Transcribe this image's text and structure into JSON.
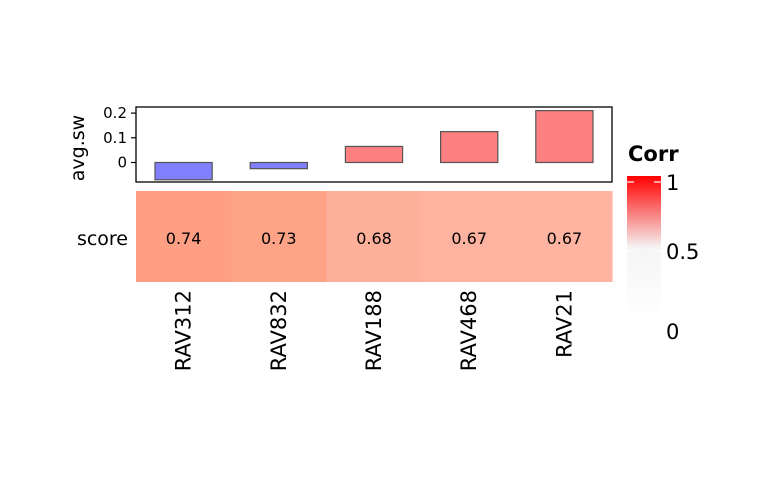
{
  "chart_data": [
    {
      "type": "bar",
      "ylabel": "avg.sw",
      "categories": [
        "RAV312",
        "RAV832",
        "RAV188",
        "RAV468",
        "RAV21"
      ],
      "values": [
        -0.07,
        -0.025,
        0.065,
        0.125,
        0.21
      ],
      "yticks": [
        0,
        0.1,
        0.2
      ],
      "ytick_labels": [
        "0",
        "0.1",
        "0.2"
      ],
      "ylim": [
        -0.08,
        0.23
      ],
      "colors": {
        "negative": "#8080ff",
        "positive": "#ff8080",
        "border": "#555555"
      }
    },
    {
      "type": "heatmap",
      "row_label": "score",
      "categories": [
        "RAV312",
        "RAV832",
        "RAV188",
        "RAV468",
        "RAV21"
      ],
      "values": [
        0.74,
        0.73,
        0.68,
        0.67,
        0.67
      ],
      "cell_labels": [
        "0.74",
        "0.73",
        "0.68",
        "0.67",
        "0.67"
      ],
      "colors": [
        "#fe9e82",
        "#fea386",
        "#feb09b",
        "#feb3a0",
        "#feb4a1"
      ]
    }
  ],
  "legend": {
    "title": "Corr",
    "ticks": [
      1,
      0.5,
      0
    ],
    "tick_labels": [
      "1",
      "0.5",
      "0"
    ],
    "colors": {
      "high": "#ff0000",
      "mid": "#f5f5f5",
      "low": "#ffffff"
    }
  }
}
